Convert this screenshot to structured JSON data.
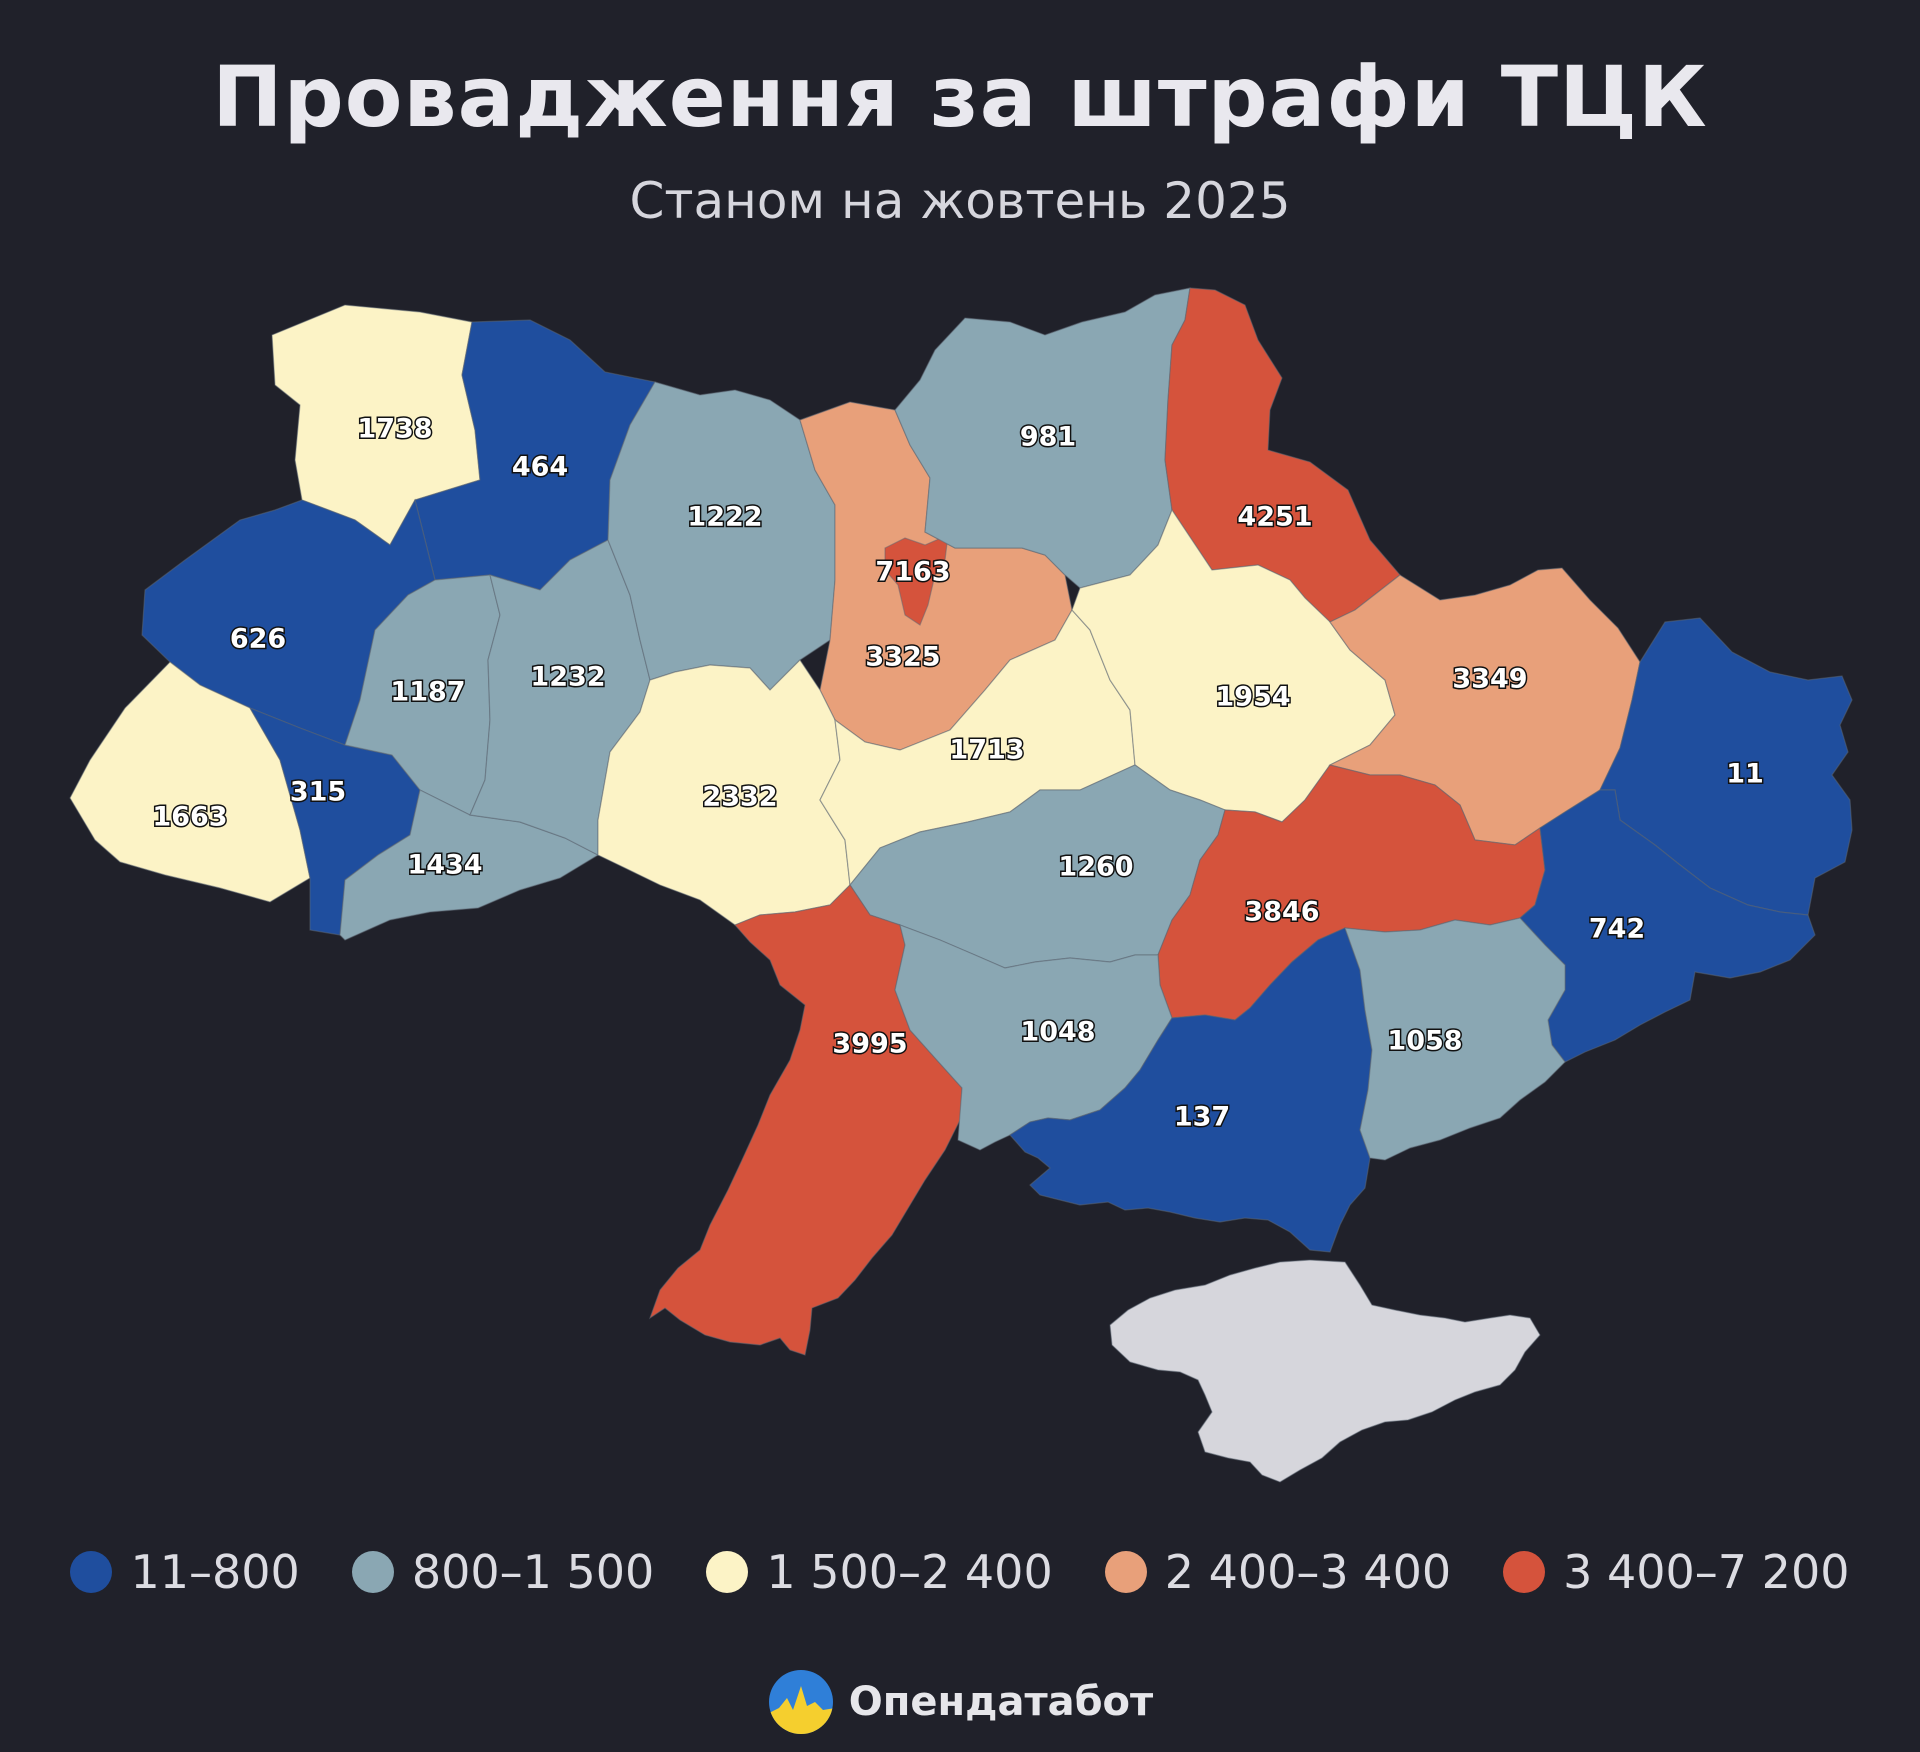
{
  "title": "Провадження за штрафи ТЦК",
  "subtitle": "Станом на жовтень 2025",
  "colors": {
    "range1": "#1f4e9e",
    "range2": "#8aa7b3",
    "range3": "#fcf3c6",
    "range4": "#e8a07a",
    "range5": "#d5533c",
    "crimea": "#d6d6dc",
    "background": "#20212a"
  },
  "legend": [
    {
      "label": "11–800",
      "color": "#1f4e9e"
    },
    {
      "label": "800–1 500",
      "color": "#8aa7b3"
    },
    {
      "label": "1 500–2 400",
      "color": "#fcf3c6"
    },
    {
      "label": "2 400–3 400",
      "color": "#e8a07a"
    },
    {
      "label": "3 400–7 200",
      "color": "#d5533c"
    }
  ],
  "regions": [
    {
      "id": "volyn",
      "value": "1738",
      "range": 3
    },
    {
      "id": "rivne",
      "value": "464",
      "range": 1
    },
    {
      "id": "lviv",
      "value": "626",
      "range": 1
    },
    {
      "id": "zakarpattia",
      "value": "1663",
      "range": 3
    },
    {
      "id": "ivano-frankivsk",
      "value": "315",
      "range": 1
    },
    {
      "id": "ternopil",
      "value": "1187",
      "range": 2
    },
    {
      "id": "chernivtsi",
      "value": "1434",
      "range": 2
    },
    {
      "id": "khmelnytskyi",
      "value": "1232",
      "range": 2
    },
    {
      "id": "zhytomyr",
      "value": "1222",
      "range": 2
    },
    {
      "id": "kyiv-city",
      "value": "7163",
      "range": 5
    },
    {
      "id": "kyiv-oblast",
      "value": "3325",
      "range": 4
    },
    {
      "id": "chernihiv",
      "value": "981",
      "range": 2
    },
    {
      "id": "sumy",
      "value": "4251",
      "range": 5
    },
    {
      "id": "vinnytsia",
      "value": "2332",
      "range": 3
    },
    {
      "id": "cherkasy",
      "value": "1713",
      "range": 3
    },
    {
      "id": "poltava",
      "value": "1954",
      "range": 3
    },
    {
      "id": "kharkiv",
      "value": "3349",
      "range": 4
    },
    {
      "id": "luhansk",
      "value": "11",
      "range": 1
    },
    {
      "id": "kirovohrad",
      "value": "1260",
      "range": 2
    },
    {
      "id": "dnipro",
      "value": "3846",
      "range": 5
    },
    {
      "id": "donetsk",
      "value": "742",
      "range": 1
    },
    {
      "id": "odesa",
      "value": "3995",
      "range": 5
    },
    {
      "id": "mykolaiv",
      "value": "1048",
      "range": 2
    },
    {
      "id": "kherson",
      "value": "137",
      "range": 1
    },
    {
      "id": "zaporizhzhia",
      "value": "1058",
      "range": 2
    }
  ],
  "brand": {
    "name": "Опендатабот"
  }
}
